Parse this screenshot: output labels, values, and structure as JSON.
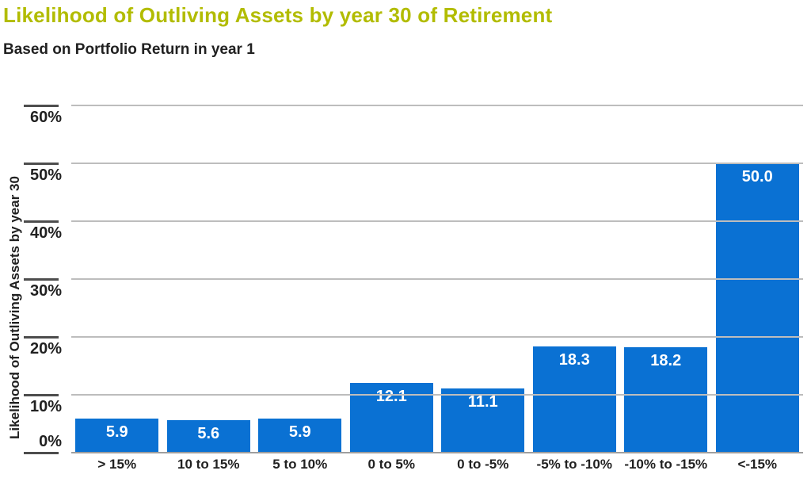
{
  "page": {
    "title": "Likelihood of Outliving Assets by year 30 of Retirement",
    "subtitle": "Based on Portfolio Return in year 1"
  },
  "colors": {
    "background": "#ffffff",
    "title": "#b2bc00",
    "text": "#212121",
    "bar": "#0a71d3",
    "bar_label": "#ffffff",
    "gridline": "#bdbdbd",
    "baseline": "#9e9e9e",
    "tick": "#4d4d4d"
  },
  "chart_data": {
    "type": "bar",
    "title": "Likelihood of Outliving Assets by year 30 of Retirement",
    "subtitle": "Based on Portfolio Return in year 1",
    "xlabel": "",
    "ylabel": "Likelihood of Outliving Assets by year 30",
    "categories": [
      "> 15%",
      "10 to 15%",
      "5 to 10%",
      "0 to 5%",
      "0 to -5%",
      "-5% to -10%",
      "-10% to -15%",
      "<-15%"
    ],
    "values": [
      5.9,
      5.6,
      5.9,
      12.1,
      11.1,
      18.3,
      18.2,
      50.0
    ],
    "value_labels": [
      "5.9",
      "5.6",
      "5.9",
      "12.1",
      "11.1",
      "18.3",
      "18.2",
      "50.0"
    ],
    "ylim": [
      0,
      60
    ],
    "yticks": [
      0,
      10,
      20,
      30,
      40,
      50,
      60
    ],
    "ytick_labels": [
      "0%",
      "10%",
      "20%",
      "30%",
      "40%",
      "50%",
      "60%"
    ],
    "grid": true,
    "gridlines_over_bars": true,
    "legend": false
  }
}
